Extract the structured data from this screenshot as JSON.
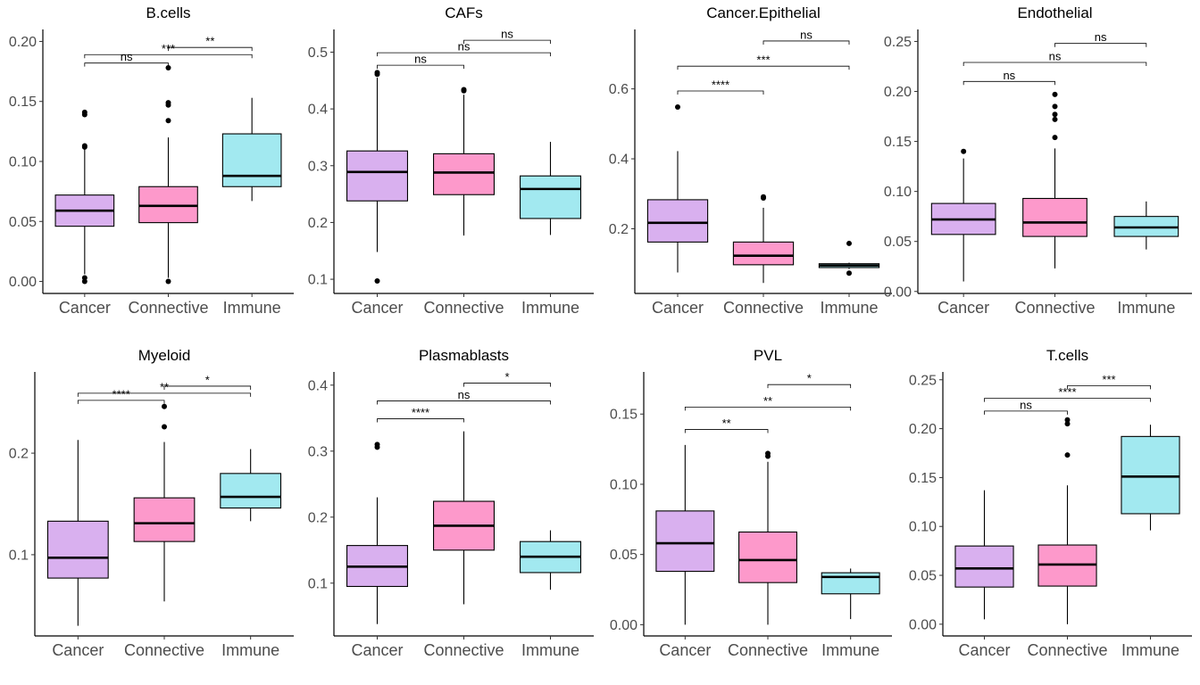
{
  "colors": {
    "Cancer": "#d9b0ef",
    "Connective": "#fd99cb",
    "Immune": "#a2e9f0"
  },
  "chart_data": [
    {
      "type": "box",
      "title": "B.cells",
      "categories": [
        "Cancer",
        "Connective",
        "Immune"
      ],
      "ylim": [
        -0.01,
        0.21
      ],
      "yticks": [
        0.0,
        0.05,
        0.1,
        0.15,
        0.2
      ],
      "ytick_labels": [
        "0.00",
        "0.05",
        "0.10",
        "0.15",
        "0.20"
      ],
      "boxes": [
        {
          "whislo": 0.006,
          "q1": 0.046,
          "med": 0.059,
          "q3": 0.072,
          "whishi": 0.11,
          "fliers": [
            0.0,
            0.003,
            0.112,
            0.113,
            0.139,
            0.141
          ]
        },
        {
          "whislo": 0.003,
          "q1": 0.049,
          "med": 0.063,
          "q3": 0.079,
          "whishi": 0.12,
          "fliers": [
            0.0,
            0.134,
            0.147,
            0.149,
            0.178
          ]
        },
        {
          "whislo": 0.067,
          "q1": 0.079,
          "med": 0.088,
          "q3": 0.123,
          "whishi": 0.153,
          "fliers": []
        }
      ],
      "comparisons": [
        {
          "pair": [
            1,
            2
          ],
          "label": "ns",
          "y": 0.182
        },
        {
          "pair": [
            1,
            3
          ],
          "label": "***",
          "y": 0.189
        },
        {
          "pair": [
            2,
            3
          ],
          "label": "**",
          "y": 0.195
        }
      ]
    },
    {
      "type": "box",
      "title": "CAFs",
      "categories": [
        "Cancer",
        "Connective",
        "Immune"
      ],
      "ylim": [
        0.075,
        0.54
      ],
      "yticks": [
        0.1,
        0.2,
        0.3,
        0.4,
        0.5
      ],
      "ytick_labels": [
        "0.1",
        "0.2",
        "0.3",
        "0.4",
        "0.5"
      ],
      "boxes": [
        {
          "whislo": 0.148,
          "q1": 0.238,
          "med": 0.289,
          "q3": 0.326,
          "whishi": 0.455,
          "fliers": [
            0.097,
            0.461,
            0.464
          ]
        },
        {
          "whislo": 0.177,
          "q1": 0.249,
          "med": 0.288,
          "q3": 0.321,
          "whishi": 0.425,
          "fliers": [
            0.432,
            0.434
          ]
        },
        {
          "whislo": 0.178,
          "q1": 0.207,
          "med": 0.259,
          "q3": 0.282,
          "whishi": 0.342,
          "fliers": []
        }
      ],
      "comparisons": [
        {
          "pair": [
            1,
            2
          ],
          "label": "ns",
          "y": 0.477
        },
        {
          "pair": [
            1,
            3
          ],
          "label": "ns",
          "y": 0.499
        },
        {
          "pair": [
            2,
            3
          ],
          "label": "ns",
          "y": 0.521
        }
      ]
    },
    {
      "type": "box",
      "title": "Cancer.Epithelial",
      "categories": [
        "Cancer",
        "Connective",
        "Immune"
      ],
      "ylim": [
        0.015,
        0.77
      ],
      "yticks": [
        0.2,
        0.4,
        0.6
      ],
      "ytick_labels": [
        "0.2",
        "0.4",
        "0.6"
      ],
      "boxes": [
        {
          "whislo": 0.075,
          "q1": 0.162,
          "med": 0.217,
          "q3": 0.283,
          "whishi": 0.422,
          "fliers": [
            0.548
          ]
        },
        {
          "whislo": 0.045,
          "q1": 0.097,
          "med": 0.123,
          "q3": 0.162,
          "whishi": 0.26,
          "fliers": [
            0.288,
            0.291
          ]
        },
        {
          "whislo": 0.085,
          "q1": 0.089,
          "med": 0.095,
          "q3": 0.1,
          "whishi": 0.103,
          "fliers": [
            0.073,
            0.158
          ]
        }
      ],
      "comparisons": [
        {
          "pair": [
            1,
            2
          ],
          "label": "****",
          "y": 0.594
        },
        {
          "pair": [
            1,
            3
          ],
          "label": "***",
          "y": 0.665
        },
        {
          "pair": [
            2,
            3
          ],
          "label": "ns",
          "y": 0.737
        }
      ]
    },
    {
      "type": "box",
      "title": "Endothelial",
      "categories": [
        "Cancer",
        "Connective",
        "Immune"
      ],
      "ylim": [
        -0.002,
        0.262
      ],
      "yticks": [
        0.0,
        0.05,
        0.1,
        0.15,
        0.2,
        0.25
      ],
      "ytick_labels": [
        "0.00",
        "0.05",
        "0.10",
        "0.15",
        "0.20",
        "0.25"
      ],
      "boxes": [
        {
          "whislo": 0.01,
          "q1": 0.057,
          "med": 0.072,
          "q3": 0.088,
          "whishi": 0.133,
          "fliers": [
            0.14
          ]
        },
        {
          "whislo": 0.023,
          "q1": 0.055,
          "med": 0.069,
          "q3": 0.093,
          "whishi": 0.143,
          "fliers": [
            0.154,
            0.172,
            0.177,
            0.185,
            0.197
          ]
        },
        {
          "whislo": 0.042,
          "q1": 0.055,
          "med": 0.064,
          "q3": 0.075,
          "whishi": 0.09,
          "fliers": []
        }
      ],
      "comparisons": [
        {
          "pair": [
            1,
            2
          ],
          "label": "ns",
          "y": 0.21
        },
        {
          "pair": [
            1,
            3
          ],
          "label": "ns",
          "y": 0.229
        },
        {
          "pair": [
            2,
            3
          ],
          "label": "ns",
          "y": 0.248
        }
      ]
    },
    {
      "type": "box",
      "title": "Myeloid",
      "categories": [
        "Cancer",
        "Connective",
        "Immune"
      ],
      "ylim": [
        0.02,
        0.28
      ],
      "yticks": [
        0.1,
        0.2
      ],
      "ytick_labels": [
        "0.1",
        "0.2"
      ],
      "boxes": [
        {
          "whislo": 0.03,
          "q1": 0.077,
          "med": 0.097,
          "q3": 0.133,
          "whishi": 0.213,
          "fliers": []
        },
        {
          "whislo": 0.054,
          "q1": 0.113,
          "med": 0.131,
          "q3": 0.156,
          "whishi": 0.211,
          "fliers": [
            0.226,
            0.246
          ]
        },
        {
          "whislo": 0.133,
          "q1": 0.146,
          "med": 0.157,
          "q3": 0.18,
          "whishi": 0.204,
          "fliers": []
        }
      ],
      "comparisons": [
        {
          "pair": [
            1,
            2
          ],
          "label": "****",
          "y": 0.252
        },
        {
          "pair": [
            1,
            3
          ],
          "label": "**",
          "y": 0.259
        },
        {
          "pair": [
            2,
            3
          ],
          "label": "*",
          "y": 0.266
        }
      ]
    },
    {
      "type": "box",
      "title": "Plasmablasts",
      "categories": [
        "Cancer",
        "Connective",
        "Immune"
      ],
      "ylim": [
        0.02,
        0.42
      ],
      "yticks": [
        0.1,
        0.2,
        0.3,
        0.4
      ],
      "ytick_labels": [
        "0.1",
        "0.2",
        "0.3",
        "0.4"
      ],
      "boxes": [
        {
          "whislo": 0.038,
          "q1": 0.095,
          "med": 0.125,
          "q3": 0.157,
          "whishi": 0.23,
          "fliers": [
            0.306,
            0.31
          ]
        },
        {
          "whislo": 0.068,
          "q1": 0.15,
          "med": 0.187,
          "q3": 0.224,
          "whishi": 0.33,
          "fliers": []
        },
        {
          "whislo": 0.09,
          "q1": 0.116,
          "med": 0.14,
          "q3": 0.163,
          "whishi": 0.18,
          "fliers": []
        }
      ],
      "comparisons": [
        {
          "pair": [
            1,
            2
          ],
          "label": "****",
          "y": 0.349
        },
        {
          "pair": [
            1,
            3
          ],
          "label": "ns",
          "y": 0.376
        },
        {
          "pair": [
            2,
            3
          ],
          "label": "*",
          "y": 0.403
        }
      ]
    },
    {
      "type": "box",
      "title": "PVL",
      "categories": [
        "Cancer",
        "Connective",
        "Immune"
      ],
      "ylim": [
        -0.008,
        0.18
      ],
      "yticks": [
        0.0,
        0.05,
        0.1,
        0.15
      ],
      "ytick_labels": [
        "0.00",
        "0.05",
        "0.10",
        "0.15"
      ],
      "boxes": [
        {
          "whislo": 0.0,
          "q1": 0.038,
          "med": 0.058,
          "q3": 0.081,
          "whishi": 0.128,
          "fliers": []
        },
        {
          "whislo": 0.0,
          "q1": 0.03,
          "med": 0.046,
          "q3": 0.066,
          "whishi": 0.116,
          "fliers": [
            0.12,
            0.122
          ]
        },
        {
          "whislo": 0.004,
          "q1": 0.022,
          "med": 0.034,
          "q3": 0.037,
          "whishi": 0.04,
          "fliers": []
        }
      ],
      "comparisons": [
        {
          "pair": [
            1,
            2
          ],
          "label": "**",
          "y": 0.139
        },
        {
          "pair": [
            1,
            3
          ],
          "label": "**",
          "y": 0.155
        },
        {
          "pair": [
            2,
            3
          ],
          "label": "*",
          "y": 0.171
        }
      ]
    },
    {
      "type": "box",
      "title": "T.cells",
      "categories": [
        "Cancer",
        "Connective",
        "Immune"
      ],
      "ylim": [
        -0.012,
        0.258
      ],
      "yticks": [
        0.0,
        0.05,
        0.1,
        0.15,
        0.2,
        0.25
      ],
      "ytick_labels": [
        "0.00",
        "0.05",
        "0.10",
        "0.15",
        "0.20",
        "0.25"
      ],
      "boxes": [
        {
          "whislo": 0.005,
          "q1": 0.038,
          "med": 0.057,
          "q3": 0.08,
          "whishi": 0.137,
          "fliers": []
        },
        {
          "whislo": 0.0,
          "q1": 0.039,
          "med": 0.061,
          "q3": 0.081,
          "whishi": 0.142,
          "fliers": [
            0.173,
            0.205,
            0.209
          ]
        },
        {
          "whislo": 0.096,
          "q1": 0.113,
          "med": 0.151,
          "q3": 0.192,
          "whishi": 0.204,
          "fliers": []
        }
      ],
      "comparisons": [
        {
          "pair": [
            1,
            2
          ],
          "label": "ns",
          "y": 0.218
        },
        {
          "pair": [
            1,
            3
          ],
          "label": "****",
          "y": 0.231
        },
        {
          "pair": [
            2,
            3
          ],
          "label": "***",
          "y": 0.244
        }
      ]
    }
  ]
}
